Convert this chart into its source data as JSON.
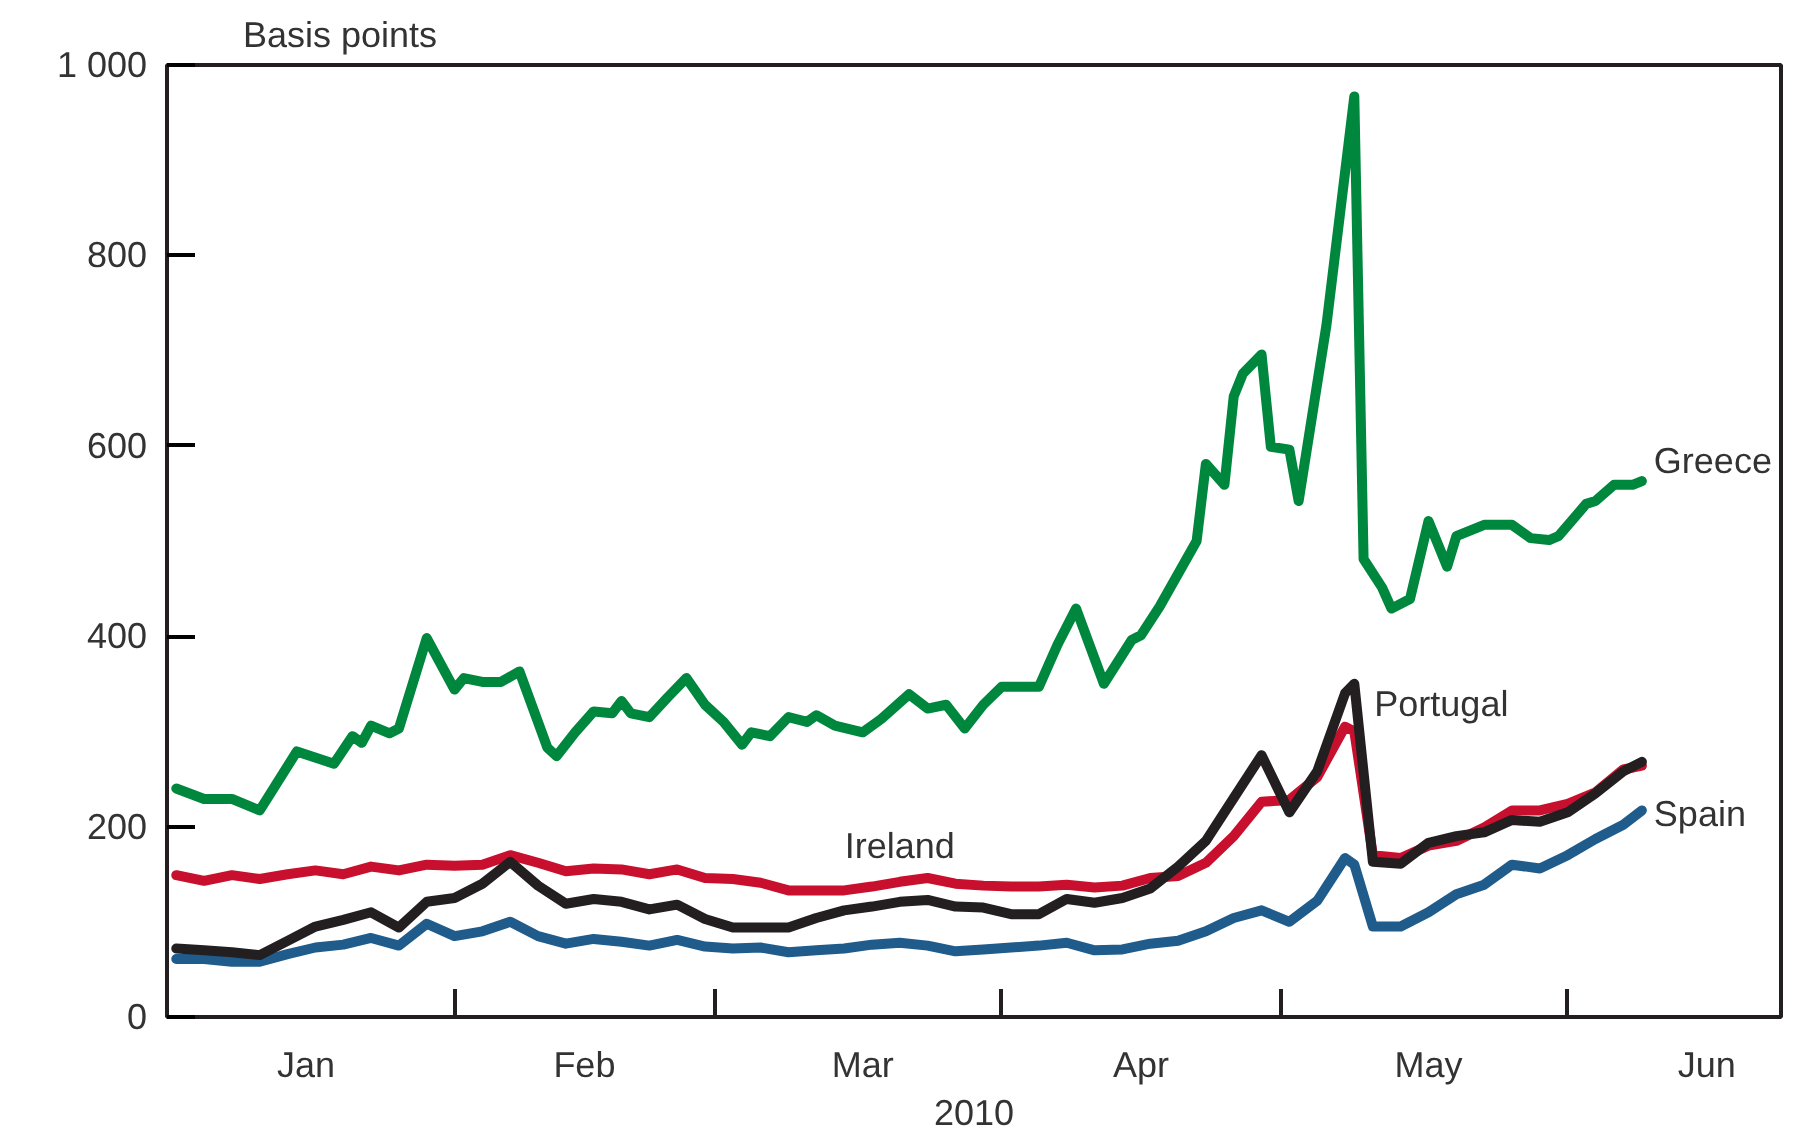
{
  "chart_data": {
    "type": "line",
    "ylabel": "Basis points",
    "xlabel": "2010",
    "xlim": [
      "2010-01-01",
      "2010-06-24"
    ],
    "xticks": [
      {
        "value": "2010-01-16",
        "label": "Jan"
      },
      {
        "value": "2010-02-01",
        "label": null
      },
      {
        "value": "2010-02-15",
        "label": "Feb"
      },
      {
        "value": "2010-03-01",
        "label": null
      },
      {
        "value": "2010-03-17",
        "label": "Mar"
      },
      {
        "value": "2010-04-01",
        "label": null
      },
      {
        "value": "2010-04-16",
        "label": "Apr"
      },
      {
        "value": "2010-05-01",
        "label": null
      },
      {
        "value": "2010-05-17",
        "label": "May"
      },
      {
        "value": "2010-06-01",
        "label": null
      },
      {
        "value": "2010-06-16",
        "label": "Jun"
      }
    ],
    "ylim": [
      0,
      1000
    ],
    "yticks": [
      0,
      200,
      400,
      600,
      800,
      {
        "value": 1000,
        "label": "1 000"
      }
    ],
    "grid": false,
    "line_style": "solid",
    "marker": "none",
    "x": [
      "2010-01-02",
      "2010-01-05",
      "2010-01-08",
      "2010-01-11",
      "2010-01-14",
      "2010-01-17",
      "2010-01-20",
      "2010-01-23",
      "2010-01-26",
      "2010-01-29",
      "2010-02-01",
      "2010-02-04",
      "2010-02-07",
      "2010-02-10",
      "2010-02-13",
      "2010-02-16",
      "2010-02-19",
      "2010-02-22",
      "2010-02-25",
      "2010-02-28",
      "2010-03-03",
      "2010-03-06",
      "2010-03-09",
      "2010-03-12",
      "2010-03-15",
      "2010-03-18",
      "2010-03-21",
      "2010-03-24",
      "2010-03-27",
      "2010-03-30",
      "2010-04-02",
      "2010-04-05",
      "2010-04-08",
      "2010-04-11",
      "2010-04-14",
      "2010-04-17",
      "2010-04-20",
      "2010-04-23",
      "2010-04-26",
      "2010-04-29",
      "2010-05-02",
      "2010-05-05",
      "2010-05-08",
      "2010-05-09",
      "2010-05-11",
      "2010-05-14",
      "2010-05-17",
      "2010-05-20",
      "2010-05-23",
      "2010-05-26",
      "2010-05-29",
      "2010-06-01",
      "2010-06-04",
      "2010-06-07",
      "2010-06-09"
    ],
    "series": [
      {
        "name": "Greece",
        "color": "#00873e",
        "x": [
          "2010-01-02",
          "2010-01-05",
          "2010-01-08",
          "2010-01-11",
          "2010-01-15",
          "2010-01-19",
          "2010-01-21",
          "2010-01-22",
          "2010-01-23",
          "2010-01-25",
          "2010-01-26",
          "2010-01-29",
          "2010-02-01",
          "2010-02-02",
          "2010-02-04",
          "2010-02-06",
          "2010-02-08",
          "2010-02-11",
          "2010-02-12",
          "2010-02-14",
          "2010-02-16",
          "2010-02-18",
          "2010-02-19",
          "2010-02-20",
          "2010-02-22",
          "2010-02-24",
          "2010-02-26",
          "2010-02-28",
          "2010-03-02",
          "2010-03-04",
          "2010-03-05",
          "2010-03-07",
          "2010-03-09",
          "2010-03-11",
          "2010-03-12",
          "2010-03-14",
          "2010-03-17",
          "2010-03-19",
          "2010-03-22",
          "2010-03-24",
          "2010-03-26",
          "2010-03-28",
          "2010-03-30",
          "2010-04-01",
          "2010-04-05",
          "2010-04-07",
          "2010-04-09",
          "2010-04-12",
          "2010-04-15",
          "2010-04-16",
          "2010-04-18",
          "2010-04-22",
          "2010-04-23",
          "2010-04-25",
          "2010-04-26",
          "2010-04-27",
          "2010-04-29",
          "2010-04-30",
          "2010-05-02",
          "2010-05-03",
          "2010-05-06",
          "2010-05-09",
          "2010-05-10",
          "2010-05-12",
          "2010-05-13",
          "2010-05-15",
          "2010-05-17",
          "2010-05-19",
          "2010-05-20",
          "2010-05-23",
          "2010-05-26",
          "2010-05-28",
          "2010-05-30",
          "2010-05-31",
          "2010-06-03",
          "2010-06-04",
          "2010-06-06",
          "2010-06-08",
          "2010-06-09"
        ],
        "values": [
          240,
          229,
          229,
          217,
          279,
          266,
          295,
          288,
          306,
          298,
          303,
          398,
          344,
          356,
          352,
          352,
          363,
          283,
          274,
          299,
          321,
          319,
          332,
          319,
          315,
          336,
          356,
          328,
          310,
          286,
          299,
          295,
          315,
          310,
          317,
          306,
          299,
          313,
          339,
          324,
          328,
          303,
          328,
          347,
          347,
          391,
          429,
          350,
          396,
          401,
          431,
          500,
          581,
          559,
          652,
          676,
          696,
          599,
          596,
          542,
          727,
          967,
          481,
          451,
          429,
          439,
          521,
          473,
          505,
          517,
          517,
          503,
          501,
          505,
          539,
          542,
          559,
          559,
          563
        ]
      },
      {
        "name": "Spain",
        "color": "#1f5c8b",
        "values": [
          61,
          61,
          58,
          58,
          66,
          73,
          76,
          83,
          75,
          98,
          85,
          90,
          100,
          85,
          77,
          82,
          79,
          75,
          81,
          74,
          72,
          73,
          68,
          70,
          72,
          76,
          78,
          75,
          69,
          71,
          73,
          75,
          78,
          70,
          71,
          77,
          80,
          90,
          104,
          112,
          100,
          122,
          167,
          160,
          95,
          95,
          110,
          129,
          139,
          160,
          156,
          170,
          187,
          202,
          217
        ]
      },
      {
        "name": "Ireland",
        "color": "#c8102e",
        "values": [
          149,
          143,
          149,
          145,
          150,
          154,
          150,
          158,
          154,
          160,
          159,
          160,
          170,
          162,
          153,
          156,
          155,
          150,
          155,
          146,
          145,
          141,
          133,
          133,
          133,
          137,
          142,
          146,
          140,
          138,
          137,
          137,
          139,
          136,
          138,
          146,
          148,
          162,
          190,
          226,
          228,
          252,
          305,
          300,
          170,
          167,
          180,
          185,
          199,
          217,
          217,
          224,
          236,
          260,
          264
        ]
      },
      {
        "name": "Portugal",
        "color": "#231f20",
        "values": [
          72,
          70,
          68,
          65,
          80,
          95,
          102,
          110,
          94,
          121,
          125,
          140,
          163,
          138,
          119,
          124,
          121,
          113,
          118,
          103,
          94,
          94,
          94,
          104,
          112,
          116,
          121,
          123,
          116,
          115,
          108,
          108,
          124,
          120,
          125,
          135,
          158,
          185,
          230,
          275,
          215,
          258,
          340,
          350,
          163,
          161,
          183,
          190,
          194,
          207,
          205,
          215,
          235,
          258,
          268
        ]
      }
    ]
  }
}
